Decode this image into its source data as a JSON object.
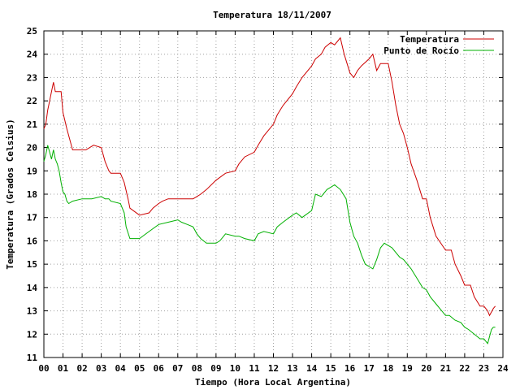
{
  "chart_data": {
    "type": "line",
    "title": "Temperatura 18/11/2007",
    "xlabel": "Tiempo (Hora Local Argentina)",
    "ylabel": "Temperatura (Grados Celsius)",
    "xlim": [
      0,
      24
    ],
    "ylim": [
      11,
      25
    ],
    "x_ticks": [
      "00",
      "01",
      "02",
      "03",
      "04",
      "05",
      "06",
      "07",
      "08",
      "09",
      "10",
      "11",
      "12",
      "13",
      "14",
      "15",
      "16",
      "17",
      "18",
      "19",
      "20",
      "21",
      "22",
      "23",
      "24"
    ],
    "y_ticks": [
      11,
      12,
      13,
      14,
      15,
      16,
      17,
      18,
      19,
      20,
      21,
      22,
      23,
      24,
      25
    ],
    "grid": true,
    "legend_position": "top-right",
    "series": [
      {
        "name": "Temperatura",
        "color": "#cc0000",
        "x": [
          0,
          0.1,
          0.2,
          0.3,
          0.4,
          0.5,
          0.6,
          0.7,
          0.8,
          0.9,
          1.0,
          1.2,
          1.5,
          2.0,
          2.2,
          2.4,
          2.6,
          3.0,
          3.2,
          3.4,
          3.5,
          4.0,
          4.2,
          4.4,
          4.5,
          5.0,
          5.5,
          5.7,
          6.0,
          6.2,
          6.5,
          7.0,
          7.5,
          7.8,
          8.0,
          8.2,
          8.5,
          9.0,
          9.5,
          10.0,
          10.2,
          10.5,
          11.0,
          11.2,
          11.5,
          12.0,
          12.2,
          12.5,
          13.0,
          13.2,
          13.5,
          14.0,
          14.2,
          14.5,
          14.7,
          15.0,
          15.2,
          15.4,
          15.5,
          15.7,
          16.0,
          16.2,
          16.4,
          16.6,
          17.0,
          17.2,
          17.4,
          17.6,
          18.0,
          18.2,
          18.4,
          18.6,
          18.8,
          19.0,
          19.2,
          19.5,
          19.8,
          20.0,
          20.2,
          20.5,
          21.0,
          21.3,
          21.5,
          21.8,
          22.0,
          22.3,
          22.5,
          22.8,
          23.0,
          23.2,
          23.3,
          23.5,
          23.6
        ],
        "values": [
          20.8,
          21.0,
          21.6,
          22.0,
          22.4,
          22.8,
          22.4,
          22.4,
          22.4,
          22.4,
          21.5,
          20.8,
          19.9,
          19.9,
          19.9,
          20.0,
          20.1,
          20.0,
          19.4,
          19.0,
          18.9,
          18.9,
          18.5,
          17.8,
          17.4,
          17.1,
          17.2,
          17.4,
          17.6,
          17.7,
          17.8,
          17.8,
          17.8,
          17.8,
          17.9,
          18.0,
          18.2,
          18.6,
          18.9,
          19.0,
          19.3,
          19.6,
          19.8,
          20.1,
          20.5,
          21.0,
          21.4,
          21.8,
          22.3,
          22.6,
          23.0,
          23.5,
          23.8,
          24.0,
          24.3,
          24.5,
          24.4,
          24.6,
          24.7,
          24.0,
          23.2,
          23.0,
          23.3,
          23.5,
          23.8,
          24.0,
          23.3,
          23.6,
          23.6,
          22.8,
          21.8,
          21.0,
          20.6,
          20.0,
          19.3,
          18.6,
          17.8,
          17.8,
          17.0,
          16.2,
          15.6,
          15.6,
          15.0,
          14.5,
          14.1,
          14.1,
          13.6,
          13.2,
          13.2,
          13.0,
          12.8,
          13.1,
          13.2
        ]
      },
      {
        "name": "Punto de Rocío",
        "color": "#00b000",
        "x": [
          0,
          0.1,
          0.2,
          0.3,
          0.4,
          0.5,
          0.6,
          0.7,
          0.8,
          0.9,
          1.0,
          1.1,
          1.2,
          1.3,
          1.5,
          2.0,
          2.5,
          3.0,
          3.2,
          3.4,
          3.5,
          4.0,
          4.2,
          4.3,
          4.5,
          5.0,
          5.5,
          6.0,
          6.5,
          7.0,
          7.2,
          7.5,
          7.8,
          8.0,
          8.2,
          8.5,
          9.0,
          9.2,
          9.5,
          10.0,
          10.2,
          10.5,
          11.0,
          11.2,
          11.5,
          12.0,
          12.2,
          12.5,
          13.0,
          13.2,
          13.5,
          14.0,
          14.2,
          14.5,
          14.8,
          15.0,
          15.2,
          15.5,
          15.8,
          16.0,
          16.2,
          16.4,
          16.6,
          16.8,
          17.0,
          17.2,
          17.4,
          17.6,
          17.8,
          18.0,
          18.2,
          18.4,
          18.6,
          18.8,
          19.0,
          19.2,
          19.5,
          19.8,
          20.0,
          20.2,
          20.5,
          21.0,
          21.2,
          21.5,
          21.8,
          22.0,
          22.2,
          22.5,
          22.8,
          23.0,
          23.2,
          23.3,
          23.4,
          23.5,
          23.6
        ],
        "values": [
          19.4,
          19.7,
          20.1,
          19.8,
          19.5,
          19.9,
          19.5,
          19.3,
          19.0,
          18.5,
          18.1,
          18.0,
          17.7,
          17.6,
          17.7,
          17.8,
          17.8,
          17.9,
          17.8,
          17.8,
          17.7,
          17.6,
          17.2,
          16.6,
          16.1,
          16.1,
          16.4,
          16.7,
          16.8,
          16.9,
          16.8,
          16.7,
          16.6,
          16.3,
          16.1,
          15.9,
          15.9,
          16.0,
          16.3,
          16.2,
          16.2,
          16.1,
          16.0,
          16.3,
          16.4,
          16.3,
          16.6,
          16.8,
          17.1,
          17.2,
          17.0,
          17.3,
          18.0,
          17.9,
          18.2,
          18.3,
          18.4,
          18.2,
          17.8,
          16.8,
          16.2,
          15.9,
          15.4,
          15.0,
          14.9,
          14.8,
          15.2,
          15.7,
          15.9,
          15.8,
          15.7,
          15.5,
          15.3,
          15.2,
          15.0,
          14.8,
          14.4,
          14.0,
          13.9,
          13.6,
          13.3,
          12.8,
          12.8,
          12.6,
          12.5,
          12.3,
          12.2,
          12.0,
          11.8,
          11.8,
          11.6,
          11.9,
          12.2,
          12.3,
          12.3
        ]
      }
    ]
  }
}
